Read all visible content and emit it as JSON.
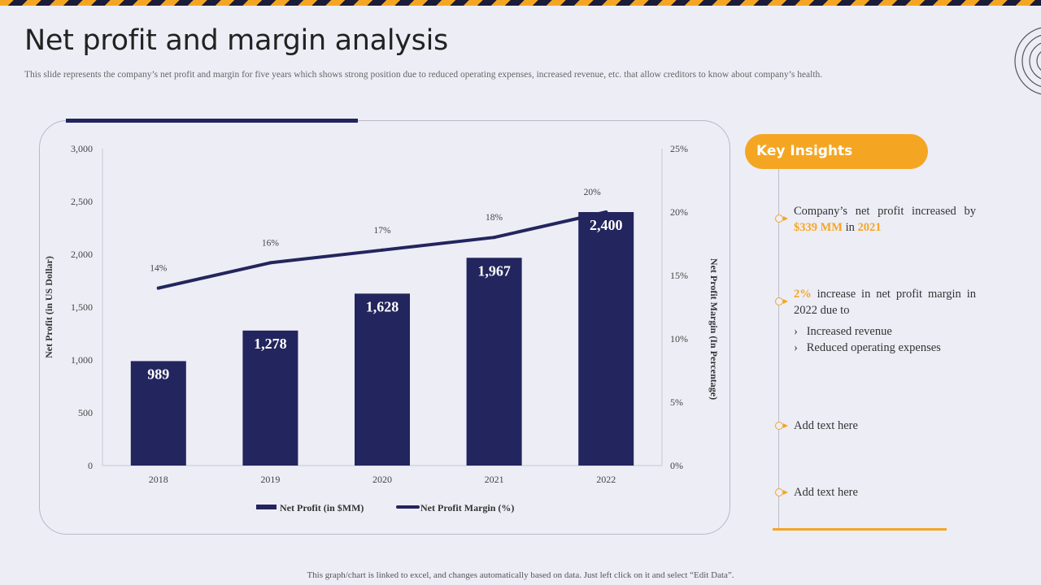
{
  "page": {
    "title": "Net profit and margin analysis",
    "subtitle": "This slide represents the company’s net profit and margin for five years which shows strong position due to reduced operating expenses, increased revenue, etc. that allow creditors to know about company’s health.",
    "footer": "This graph/chart is linked to excel,  and changes  automatically based on data.  Just left click on it and select  “Edit Data”."
  },
  "colors": {
    "bar": "#23255e",
    "line": "#23255e",
    "accent": "#f4a623",
    "background": "#ededf6"
  },
  "chart_data": {
    "type": "bar",
    "categories": [
      "2018",
      "2019",
      "2020",
      "2021",
      "2022"
    ],
    "series": [
      {
        "name": "Net Profit (in $MM)",
        "type": "bar",
        "axis": "left",
        "values": [
          989,
          1278,
          1628,
          1967,
          2400
        ],
        "labels": [
          "989",
          "1,278",
          "1,628",
          "1,967",
          "2,400"
        ]
      },
      {
        "name": "Net Profit Margin (%)",
        "type": "line",
        "axis": "right",
        "values": [
          14,
          16,
          17,
          18,
          20
        ],
        "labels": [
          "14%",
          "16%",
          "17%",
          "18%",
          "20%"
        ]
      }
    ],
    "ylabel": "Net Profit (in US Dollar)",
    "y2label": "Net Profit Margin (In Percentage)",
    "ylim": [
      0,
      3000
    ],
    "y2lim": [
      0,
      25
    ],
    "yticks": [
      "0",
      "500",
      "1,000",
      "1,500",
      "2,000",
      "2,500",
      "3,000"
    ],
    "y2ticks": [
      "0%",
      "5%",
      "10%",
      "15%",
      "20%",
      "25%"
    ],
    "legend_position": "bottom",
    "grid": false
  },
  "insights": {
    "heading": "Key Insights",
    "item1": {
      "text_a": "Company’s net profit increased by ",
      "value": "$339 MM",
      "text_b": " in ",
      "year": "2021"
    },
    "item2": {
      "value": "2%",
      "text": " increase in net profit margin in 2022 due to",
      "bullet": "›",
      "subitems": [
        "Increased revenue",
        "Reduced operating  expenses"
      ]
    },
    "item3": "Add text  here",
    "item4": "Add text  here"
  }
}
